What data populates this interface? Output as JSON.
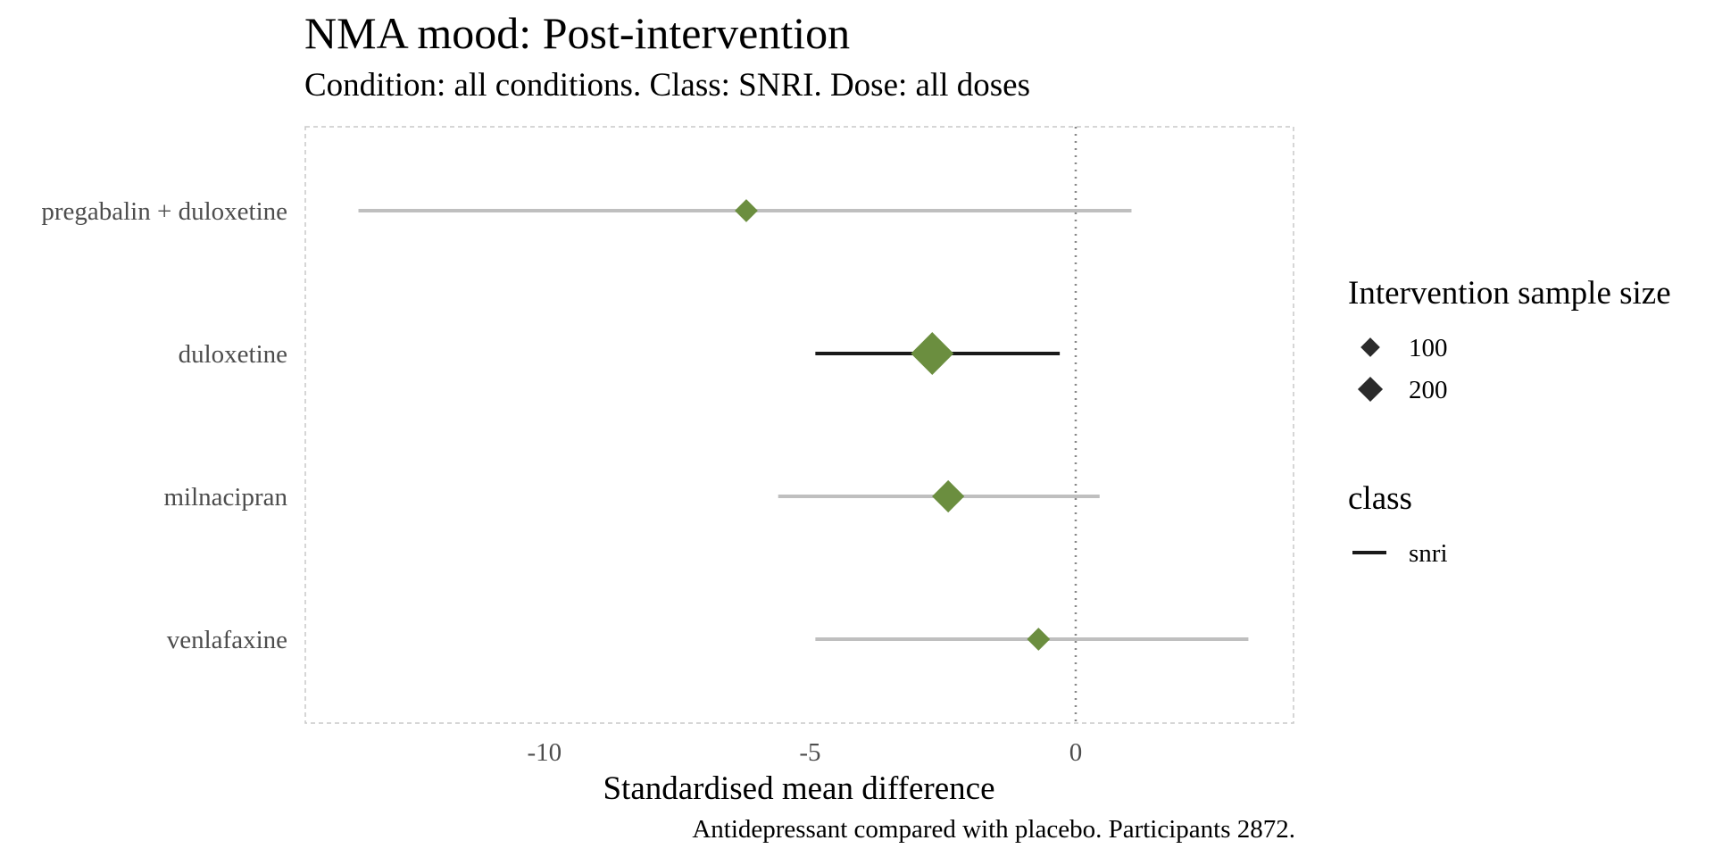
{
  "chart_data": {
    "type": "forest",
    "title": "NMA mood: Post-intervention",
    "subtitle": "Condition: all conditions. Class: SNRI. Dose: all doses",
    "xlabel": "Standardised mean difference",
    "caption": "Antidepressant compared with placebo. Participants 2872.",
    "xlim": [
      -14.5,
      4.1
    ],
    "xticks": [
      -10,
      -5,
      0
    ],
    "xtick_labels": [
      "-10",
      "-5",
      "0"
    ],
    "reference_line": 0,
    "rows": [
      {
        "label": "pregabalin + duloxetine",
        "estimate": -6.2,
        "lower": -13.5,
        "upper": 1.05,
        "sample_size": 40,
        "significant": false
      },
      {
        "label": "duloxetine",
        "estimate": -2.7,
        "lower": -4.9,
        "upper": -0.3,
        "sample_size": 230,
        "significant": true
      },
      {
        "label": "milnacipran",
        "estimate": -2.4,
        "lower": -5.6,
        "upper": 0.45,
        "sample_size": 110,
        "significant": false
      },
      {
        "label": "venlafaxine",
        "estimate": -0.7,
        "lower": -4.9,
        "upper": 3.25,
        "sample_size": 40,
        "significant": false
      }
    ],
    "colors": {
      "point": "#6b8e3f",
      "ci_significant": "#1a1a1a",
      "ci_nonsignificant": "#bfbfbf",
      "panel_border": "#c8c8c8",
      "reference_line": "#888888"
    },
    "legend": {
      "size": {
        "title": "Intervention sample size",
        "items": [
          {
            "label": "100",
            "value": 100
          },
          {
            "label": "200",
            "value": 200
          }
        ]
      },
      "class": {
        "title": "class",
        "items": [
          {
            "label": "snri"
          }
        ]
      }
    }
  }
}
